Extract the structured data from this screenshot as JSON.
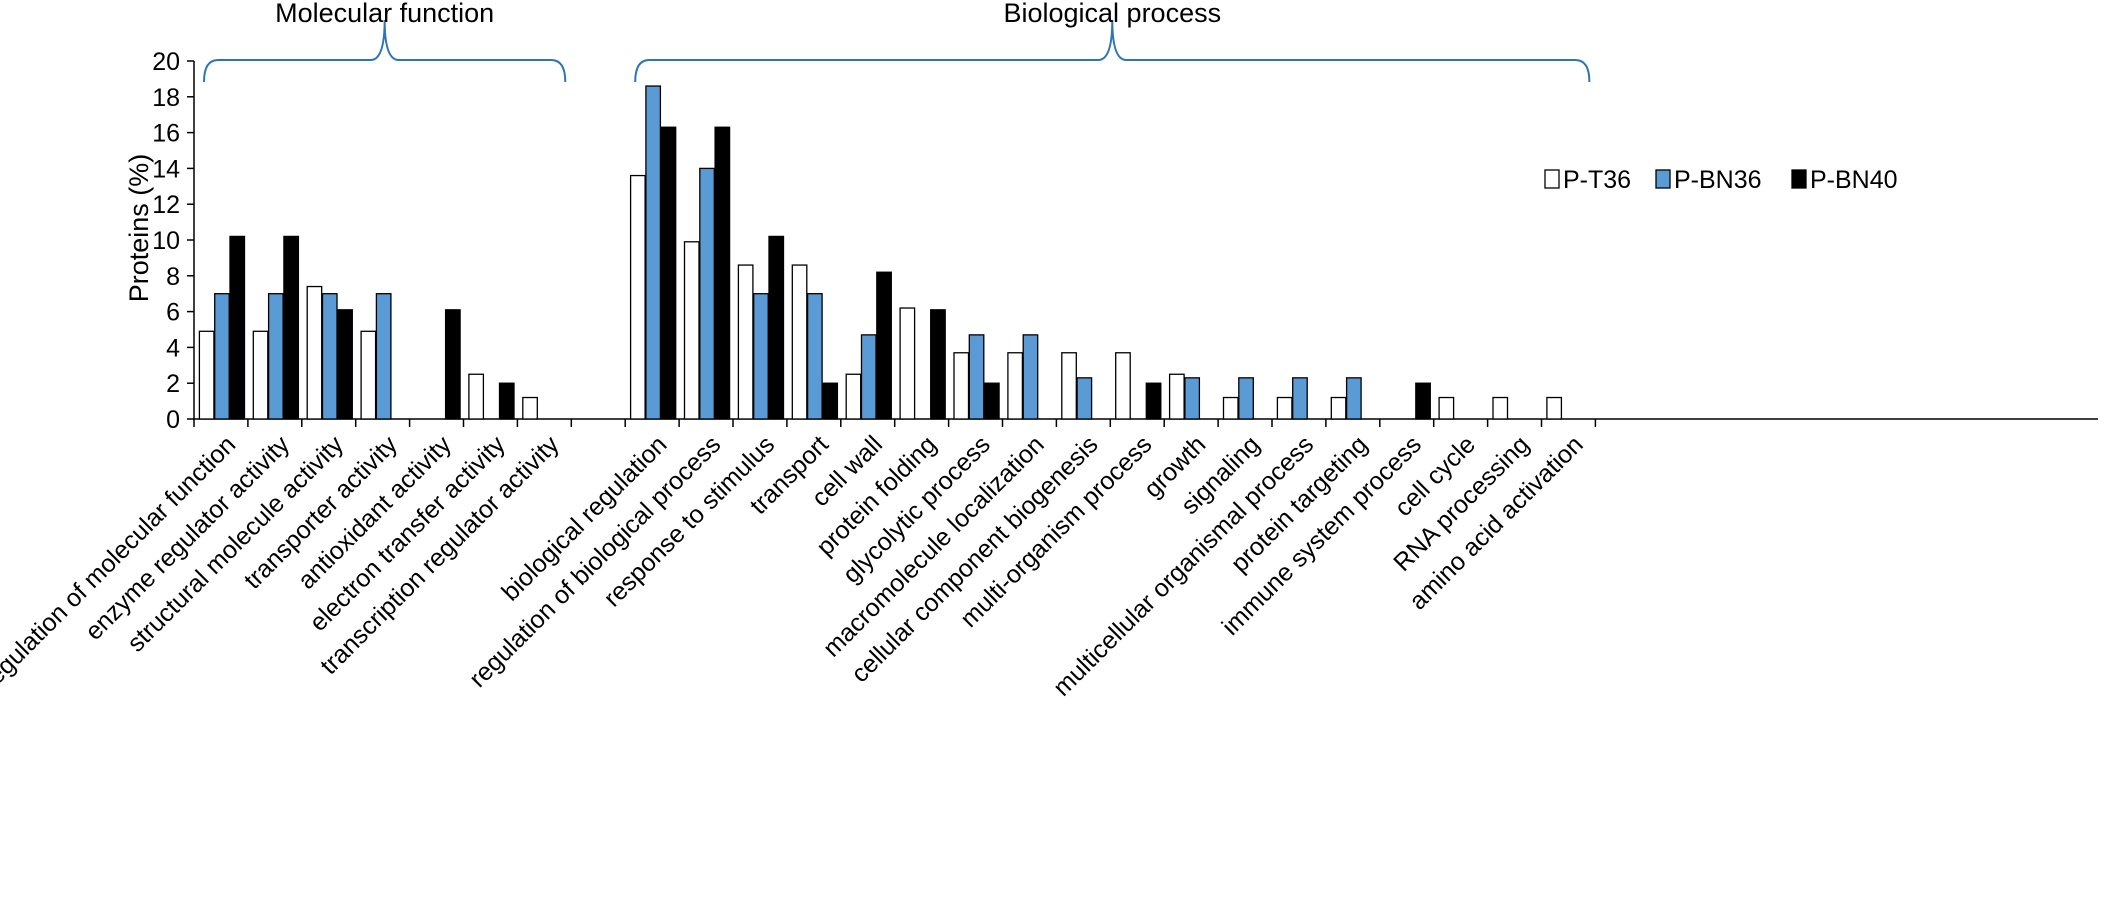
{
  "chart_data": {
    "type": "bar",
    "title": "",
    "xlabel": "",
    "ylabel": "Proteins  (%)",
    "ylim": [
      0,
      20
    ],
    "yticks": [
      "0",
      "2",
      "4",
      "6",
      "8",
      "10",
      "12",
      "14",
      "16",
      "18",
      "20"
    ],
    "grid": false,
    "legend_position": "top-right",
    "groups": [
      {
        "label": "Molecular function",
        "first_category": 0,
        "last_category": 6
      },
      {
        "label": "Biological process",
        "first_category": 7,
        "last_category": 24
      }
    ],
    "categories": [
      "regulation of molecular function",
      "enzyme regulator activity",
      "structural molecule activity",
      "transporter activity",
      "antioxidant activity",
      "electron transfer activity",
      "transcription regulator activity",
      "biological regulation",
      "regulation of biological process",
      "response to stimulus",
      "transport",
      "cell wall",
      "protein folding",
      "glycolytic process",
      "macromolecule localization",
      "cellular component biogenesis",
      "multi-organism process",
      "growth",
      "signaling",
      "multicellular organismal process",
      "protein targeting",
      "immune system process",
      "cell cycle",
      "RNA processing",
      "amino acid activation"
    ],
    "series": [
      {
        "name": "P-T36",
        "color": "#ffffff",
        "values": [
          4.9,
          4.9,
          7.4,
          4.9,
          0,
          2.5,
          1.2,
          13.6,
          9.9,
          8.6,
          8.6,
          2.5,
          6.2,
          3.7,
          3.7,
          3.7,
          3.7,
          2.5,
          1.2,
          1.2,
          1.2,
          0,
          1.2,
          1.2,
          1.2
        ]
      },
      {
        "name": "P-BN36",
        "color": "#5b9bd5",
        "values": [
          7.0,
          7.0,
          7.0,
          7.0,
          0,
          0,
          0,
          18.6,
          14.0,
          7.0,
          7.0,
          4.7,
          0,
          4.7,
          4.7,
          2.3,
          0,
          2.3,
          2.3,
          2.3,
          2.3,
          0,
          0,
          0,
          0
        ]
      },
      {
        "name": "P-BN40",
        "color": "#000000",
        "values": [
          10.2,
          10.2,
          6.1,
          0,
          6.1,
          2.0,
          0,
          16.3,
          16.3,
          10.2,
          2.0,
          8.2,
          6.1,
          2.0,
          0,
          0,
          2.0,
          0,
          0,
          0,
          0,
          2.0,
          0,
          0,
          0
        ]
      }
    ]
  },
  "colors": {
    "axis": "#000000",
    "bar_stroke": "#000000",
    "brace": "#2e75b6"
  }
}
